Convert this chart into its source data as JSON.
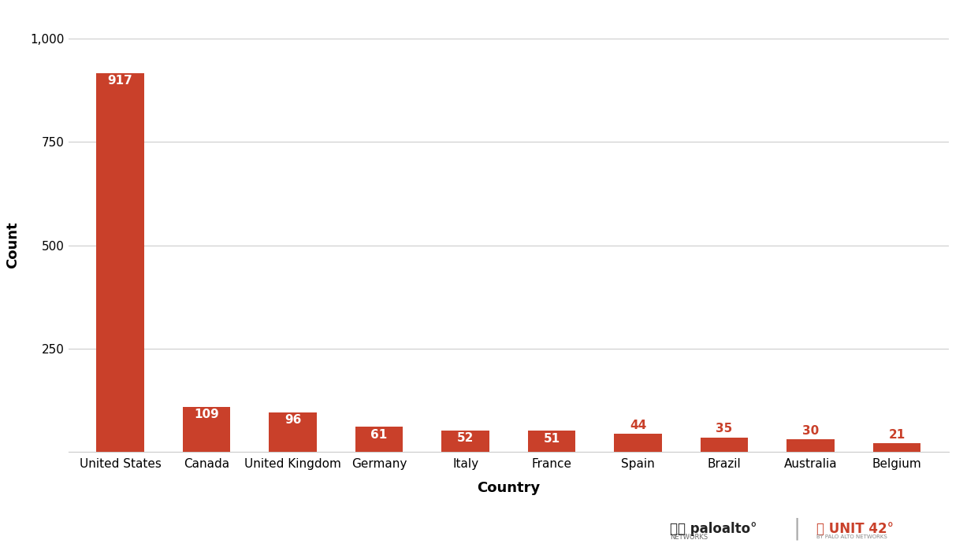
{
  "categories": [
    "United States",
    "Canada",
    "United Kingdom",
    "Germany",
    "Italy",
    "France",
    "Spain",
    "Brazil",
    "Australia",
    "Belgium"
  ],
  "values": [
    917,
    109,
    96,
    61,
    52,
    51,
    44,
    35,
    30,
    21
  ],
  "bar_color": "#c9402a",
  "label_color_inside": "#ffffff",
  "label_color_outside": "#c9402a",
  "inside_threshold": 45,
  "title": "",
  "xlabel": "Country",
  "ylabel": "Count",
  "ylim": [
    0,
    1000
  ],
  "yticks": [
    0,
    250,
    500,
    750,
    1000
  ],
  "background_color": "#ffffff",
  "grid_color": "#cccccc",
  "xlabel_fontsize": 13,
  "ylabel_fontsize": 13,
  "tick_fontsize": 11,
  "bar_label_fontsize": 11,
  "bar_width": 0.55
}
